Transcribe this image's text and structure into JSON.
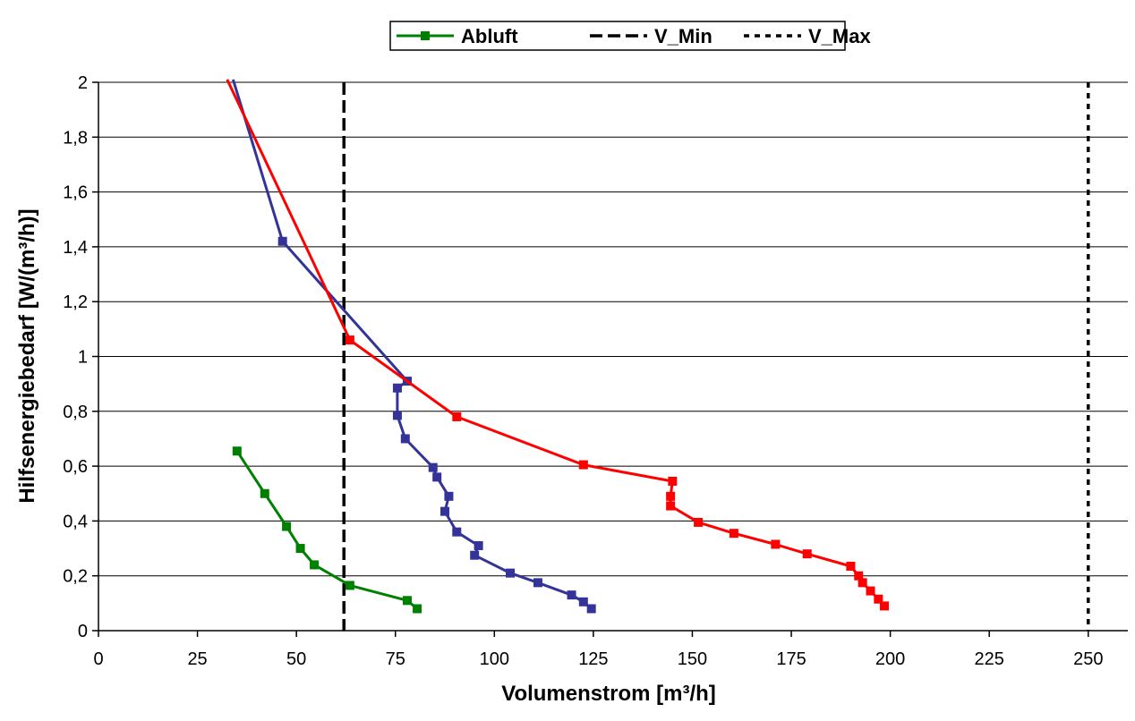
{
  "chart_data": {
    "type": "line",
    "xlabel": "Volumenstrom [m³/h]",
    "ylabel": "Hilfsenergiebedarf [W/(m³/h)]",
    "xlim": [
      0,
      260
    ],
    "ylim": [
      0,
      2
    ],
    "xticks": [
      0,
      25,
      50,
      75,
      100,
      125,
      150,
      175,
      200,
      225,
      250
    ],
    "yticks": [
      0,
      0.2,
      0.4,
      0.6,
      0.8,
      1,
      1.2,
      1.4,
      1.6,
      1.8,
      2
    ],
    "ytick_labels": [
      "0",
      "0,2",
      "0,4",
      "0,6",
      "0,8",
      "1",
      "1,2",
      "1,4",
      "1,6",
      "1,8",
      "2"
    ],
    "grid": "horizontal",
    "legend_position": "top-center",
    "legend": [
      {
        "label": "Abluft",
        "color": "#008000",
        "style": "line-square"
      },
      {
        "label": "V_Min",
        "color": "#000000",
        "style": "dashed"
      },
      {
        "label": "V_Max",
        "color": "#000000",
        "style": "dotted"
      }
    ],
    "series": [
      {
        "color": "#008000",
        "marker": "square",
        "x": [
          35,
          42,
          47.5,
          51,
          54.5,
          63.5,
          78,
          80.5
        ],
        "y": [
          0.655,
          0.5,
          0.38,
          0.3,
          0.24,
          0.165,
          0.11,
          0.08
        ]
      },
      {
        "color": "#333399",
        "marker": "square",
        "x": [
          34,
          46.5,
          78,
          75.5,
          75.5,
          77.5,
          84.5,
          85.5,
          88.5,
          87.5,
          90.5,
          96,
          95,
          104,
          111,
          119.5,
          122.5,
          124.5
        ],
        "y": [
          2.01,
          1.42,
          0.91,
          0.885,
          0.785,
          0.7,
          0.595,
          0.56,
          0.49,
          0.435,
          0.36,
          0.31,
          0.275,
          0.21,
          0.175,
          0.13,
          0.105,
          0.08
        ],
        "markers_from_index": 1
      },
      {
        "color": "#ff0000",
        "marker": "square",
        "x": [
          32.5,
          63.5,
          90.5,
          122.5,
          145,
          144.5,
          144.5,
          151.5,
          160.5,
          171,
          179,
          190,
          192,
          193,
          195,
          197,
          198.5
        ],
        "y": [
          2.01,
          1.06,
          0.78,
          0.605,
          0.545,
          0.49,
          0.455,
          0.395,
          0.355,
          0.315,
          0.28,
          0.235,
          0.2,
          0.175,
          0.145,
          0.115,
          0.09
        ],
        "markers_from_index": 1
      }
    ],
    "reference_lines": [
      {
        "name": "V_Min",
        "x": 62,
        "color": "#000000",
        "style": "dashed"
      },
      {
        "name": "V_Max",
        "x": 250,
        "color": "#000000",
        "style": "dotted"
      }
    ]
  }
}
